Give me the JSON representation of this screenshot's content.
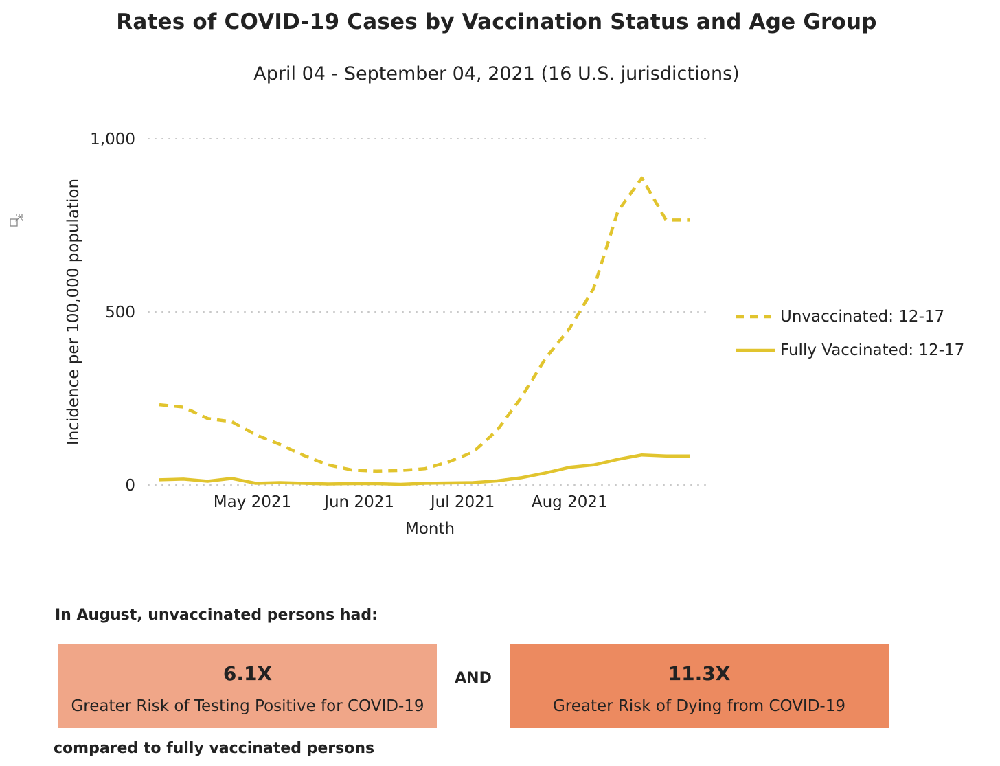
{
  "header": {
    "title": "Rates of COVID-19 Cases by Vaccination Status and Age Group",
    "subtitle": "April 04 - September 04, 2021 (16 U.S. jurisdictions)"
  },
  "chart_data": {
    "type": "line",
    "xlabel": "Month",
    "ylabel": "Incidence per 100,000 population",
    "ylim": [
      0,
      1000
    ],
    "yticks": [
      0,
      500,
      1000
    ],
    "ytick_labels": [
      "0",
      "500",
      "1,000"
    ],
    "xlim": [
      "2021-04-04",
      "2021-09-10"
    ],
    "xticks": [
      "2021-05-01",
      "2021-06-01",
      "2021-07-01",
      "2021-08-01"
    ],
    "xtick_labels": [
      "May 2021",
      "Jun 2021",
      "Jul 2021",
      "Aug 2021"
    ],
    "grid": "horizontal dotted",
    "legend_position": "right",
    "x": [
      "2021-04-04",
      "2021-04-11",
      "2021-04-18",
      "2021-04-25",
      "2021-05-02",
      "2021-05-09",
      "2021-05-16",
      "2021-05-23",
      "2021-05-30",
      "2021-06-06",
      "2021-06-13",
      "2021-06-20",
      "2021-06-27",
      "2021-07-04",
      "2021-07-11",
      "2021-07-18",
      "2021-07-25",
      "2021-08-01",
      "2021-08-08",
      "2021-08-15",
      "2021-08-22",
      "2021-08-29",
      "2021-09-05"
    ],
    "series": [
      {
        "name": "Unvaccinated: 12-17",
        "style": "dashed",
        "color": "#E1C42E",
        "values": [
          232,
          225,
          192,
          183,
          145,
          117,
          85,
          58,
          43,
          40,
          42,
          47,
          67,
          95,
          158,
          253,
          365,
          452,
          568,
          790,
          887,
          765,
          765
        ]
      },
      {
        "name": "Fully Vaccinated: 12-17",
        "style": "solid",
        "color": "#E1C42E",
        "values": [
          15,
          17,
          11,
          19,
          5,
          7,
          5,
          3,
          4,
          4,
          2,
          5,
          6,
          7,
          12,
          21,
          35,
          51,
          58,
          74,
          87,
          84,
          84
        ]
      }
    ]
  },
  "callout": {
    "lead": "In August, unvaccinated persons had:",
    "connector": "AND",
    "tail": "compared to fully vaccinated persons",
    "cards": [
      {
        "value": "6.1X",
        "label": "Greater Risk of Testing Positive for COVID-19",
        "color": "#F0A688"
      },
      {
        "value": "11.3X",
        "label": "Greater Risk of Dying from COVID-19",
        "color": "#EC8A60"
      }
    ]
  },
  "icons": {
    "expand": "expand-icon"
  }
}
